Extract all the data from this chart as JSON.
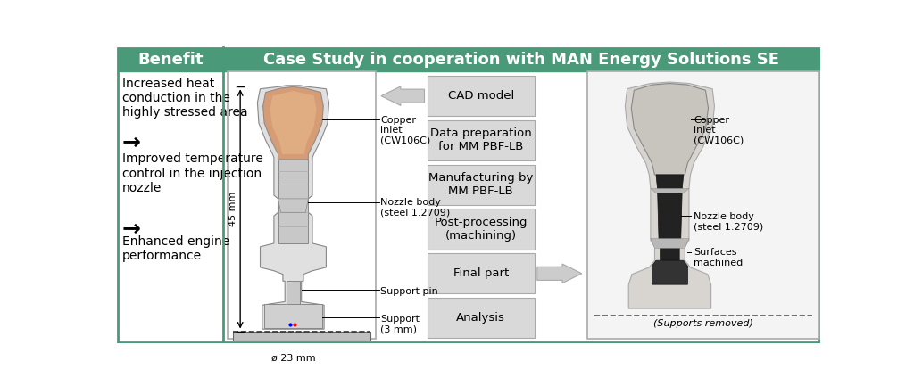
{
  "title": "Case Study in cooperation with MAN Energy Solutions SE",
  "title_bg": "#4a9a7a",
  "title_color": "white",
  "benefit_title": "Benefit",
  "benefit_texts": [
    "Increased heat\nconduction in the\nhighly stressed area",
    "→",
    "Improved temperature\ncontrol in the injection\nnozzle",
    "→",
    "Enhanced engine\nperformance"
  ],
  "process_steps": [
    "CAD model",
    "Data preparation\nfor MM PBF-LB",
    "Manufacturing by\nMM PBF-LB",
    "Post-processing\n(machining)",
    "Final part",
    "Analysis"
  ],
  "left_labels": [
    "Copper\ninlet\n(CW106C)",
    "Nozzle body\n(steel 1.2709)",
    "Support pin",
    "Support\n(3 mm)"
  ],
  "right_labels": [
    "Copper\ninlet\n(CW106C)",
    "Nozzle body\n(steel 1.2709)",
    "Surfaces\nmachined"
  ],
  "dim_45mm": "45 mm",
  "dim_23mm": "ø 23 mm",
  "supports_removed": "(Supports removed)",
  "step_bg": "#d9d9d9",
  "outer_border": "#4a9a7a",
  "fig_bg": "white"
}
